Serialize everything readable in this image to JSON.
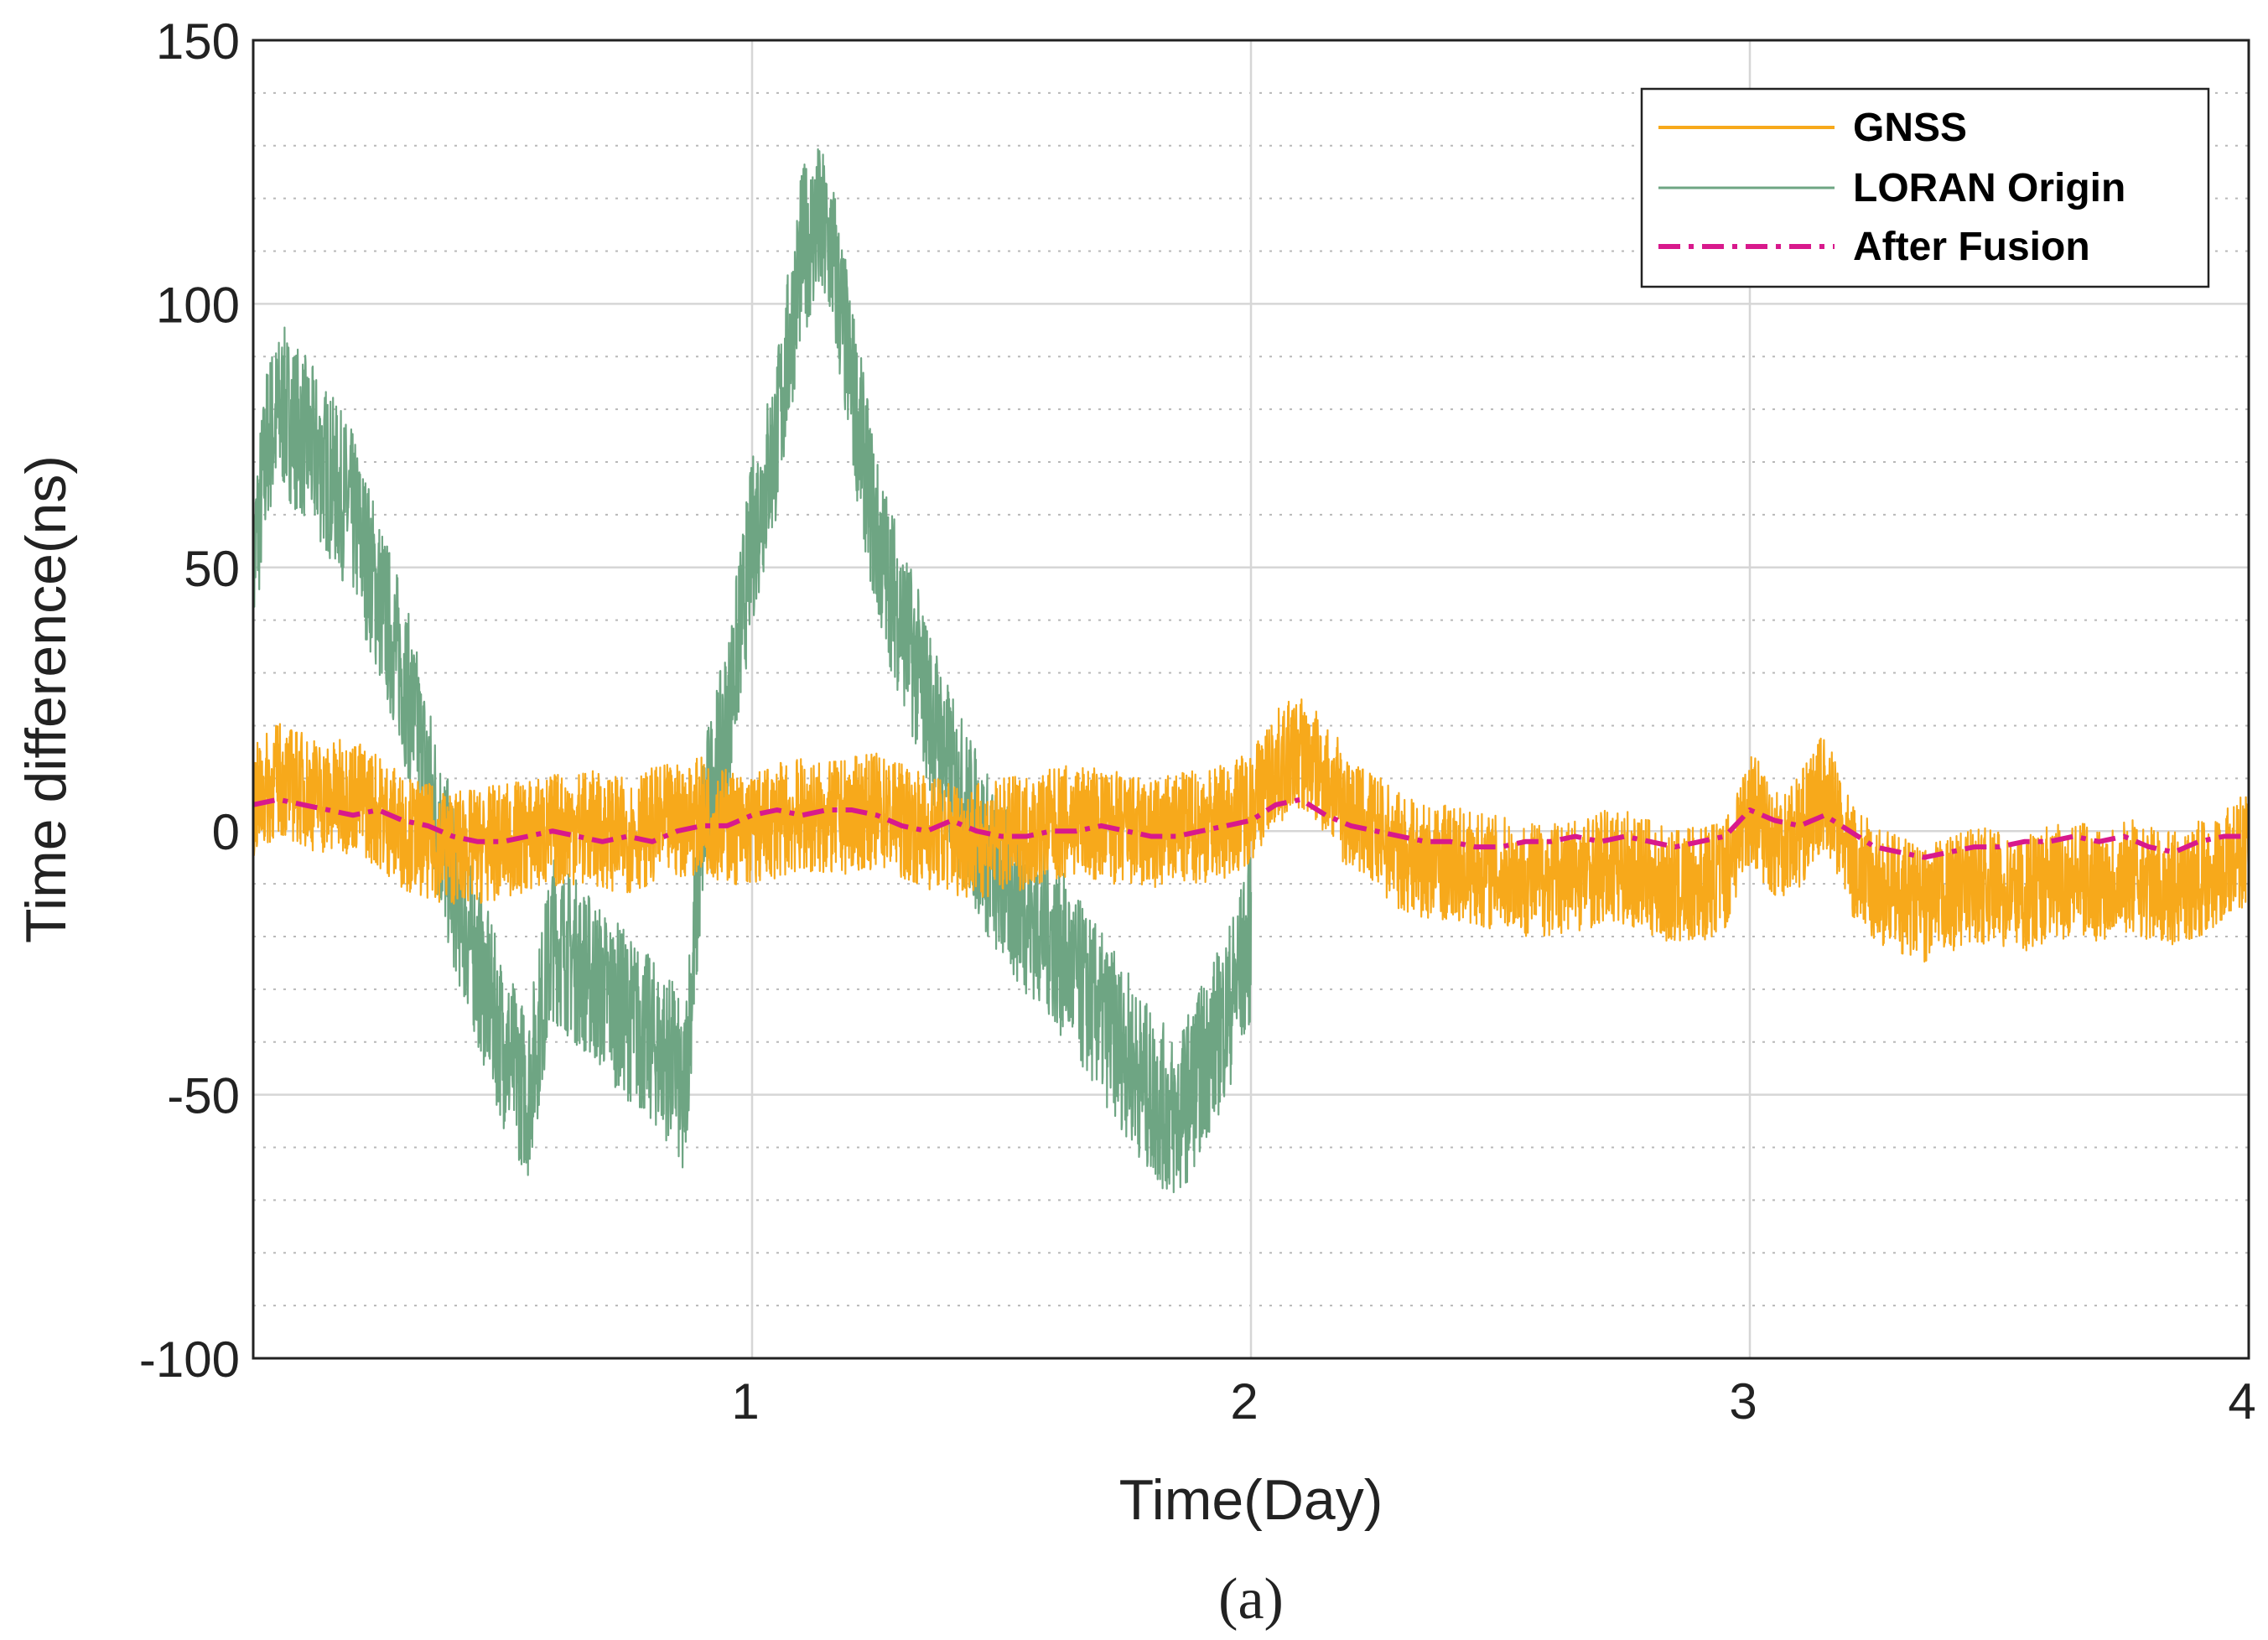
{
  "chart_data": {
    "type": "line",
    "title": "",
    "caption": "(a)",
    "xlabel": "Time(Day)",
    "ylabel": "Time difference(ns)",
    "xlim": [
      0,
      4
    ],
    "ylim": [
      -100,
      150
    ],
    "xticks": [
      1,
      2,
      3,
      4
    ],
    "xtick_labels": [
      "1",
      "2",
      "3",
      "4"
    ],
    "yticks": [
      -100,
      -50,
      0,
      50,
      100,
      150
    ],
    "ytick_labels": [
      "-100",
      "-50",
      "0",
      "50",
      "100",
      "150"
    ],
    "minor_yticks": [
      -90,
      -80,
      -70,
      -60,
      -40,
      -30,
      -20,
      -10,
      10,
      20,
      30,
      40,
      60,
      70,
      80,
      90,
      110,
      120,
      130,
      140
    ],
    "grid": true,
    "legend_position": "top-right",
    "series": [
      {
        "name": "GNSS",
        "color": "#f7a91b",
        "style": "solid",
        "x": [
          0,
          0.05,
          0.1,
          0.15,
          0.2,
          0.25,
          0.3,
          0.35,
          0.4,
          0.45,
          0.5,
          0.55,
          0.6,
          0.65,
          0.7,
          0.75,
          0.8,
          0.85,
          0.9,
          0.95,
          1.0,
          1.05,
          1.1,
          1.15,
          1.2,
          1.25,
          1.3,
          1.35,
          1.4,
          1.45,
          1.5,
          1.55,
          1.6,
          1.65,
          1.7,
          1.75,
          1.8,
          1.85,
          1.9,
          1.95,
          2.0,
          2.05,
          2.1,
          2.15,
          2.2,
          2.25,
          2.3,
          2.35,
          2.4,
          2.45,
          2.5,
          2.55,
          2.6,
          2.65,
          2.7,
          2.75,
          2.8,
          2.85,
          2.9,
          2.95,
          3.0,
          3.05,
          3.1,
          3.15,
          3.2,
          3.25,
          3.3,
          3.35,
          3.4,
          3.45,
          3.5,
          3.55,
          3.6,
          3.65,
          3.7,
          3.75,
          3.8,
          3.85,
          3.9,
          3.95,
          4.0
        ],
        "y": [
          5,
          10,
          8,
          6,
          7,
          4,
          0,
          -2,
          -3,
          -3,
          -2,
          -1,
          0,
          1,
          0,
          -1,
          1,
          2,
          3,
          1,
          0,
          2,
          3,
          2,
          3,
          4,
          2,
          0,
          -1,
          -2,
          -1,
          0,
          1,
          2,
          1,
          0,
          -1,
          0,
          1,
          2,
          5,
          12,
          15,
          10,
          3,
          0,
          -4,
          -6,
          -6,
          -7,
          -8,
          -9,
          -9,
          -8,
          -7,
          -7,
          -9,
          -11,
          -10,
          -8,
          5,
          -2,
          0,
          8,
          -5,
          -10,
          -12,
          -14,
          -12,
          -10,
          -11,
          -12,
          -10,
          -9,
          -10,
          -8,
          -10,
          -11,
          -9,
          -7,
          -3
        ]
      },
      {
        "name": "LORAN Origin",
        "color": "#6ea583",
        "style": "solid",
        "x": [
          0,
          0.03,
          0.06,
          0.1,
          0.15,
          0.2,
          0.25,
          0.3,
          0.35,
          0.4,
          0.45,
          0.5,
          0.55,
          0.56,
          0.6,
          0.65,
          0.7,
          0.75,
          0.8,
          0.85,
          0.86,
          0.9,
          0.95,
          1.0,
          1.05,
          1.1,
          1.13,
          1.16,
          1.2,
          1.25,
          1.3,
          1.35,
          1.4,
          1.45,
          1.5,
          1.55,
          1.6,
          1.65,
          1.7,
          1.75,
          1.8,
          1.85,
          1.9,
          1.95,
          2.0
        ],
        "y": [
          50,
          75,
          80,
          75,
          68,
          60,
          45,
          30,
          10,
          -10,
          -25,
          -40,
          -50,
          -45,
          -20,
          -25,
          -30,
          -35,
          -40,
          -45,
          -55,
          0,
          20,
          55,
          75,
          110,
          115,
          110,
          85,
          55,
          40,
          25,
          10,
          0,
          -10,
          -15,
          -20,
          -28,
          -35,
          -42,
          -50,
          -55,
          -45,
          -35,
          -20
        ]
      },
      {
        "name": "After Fusion",
        "color": "#d8198c",
        "style": "dash-dot",
        "x": [
          0,
          0.05,
          0.1,
          0.15,
          0.2,
          0.25,
          0.3,
          0.35,
          0.4,
          0.45,
          0.5,
          0.55,
          0.6,
          0.65,
          0.7,
          0.75,
          0.8,
          0.85,
          0.9,
          0.95,
          1.0,
          1.05,
          1.1,
          1.15,
          1.2,
          1.25,
          1.3,
          1.35,
          1.4,
          1.45,
          1.5,
          1.55,
          1.6,
          1.65,
          1.7,
          1.75,
          1.8,
          1.85,
          1.9,
          1.95,
          2.0,
          2.05,
          2.1,
          2.15,
          2.2,
          2.25,
          2.3,
          2.35,
          2.4,
          2.45,
          2.5,
          2.55,
          2.6,
          2.65,
          2.7,
          2.75,
          2.8,
          2.85,
          2.9,
          2.95,
          3.0,
          3.05,
          3.1,
          3.15,
          3.2,
          3.25,
          3.3,
          3.35,
          3.4,
          3.45,
          3.5,
          3.55,
          3.6,
          3.65,
          3.7,
          3.75,
          3.8,
          3.85,
          3.9,
          3.95,
          4.0
        ],
        "y": [
          5,
          6,
          5,
          4,
          3,
          4,
          2,
          1,
          -1,
          -2,
          -2,
          -1,
          0,
          -1,
          -2,
          -1,
          -2,
          0,
          1,
          1,
          3,
          4,
          3,
          4,
          4,
          3,
          1,
          0,
          2,
          0,
          -1,
          -1,
          0,
          0,
          1,
          0,
          -1,
          -1,
          0,
          1,
          2,
          5,
          6,
          3,
          1,
          0,
          -1,
          -2,
          -2,
          -3,
          -3,
          -2,
          -2,
          -1,
          -2,
          -1,
          -2,
          -3,
          -2,
          -1,
          4,
          2,
          1,
          3,
          0,
          -3,
          -4,
          -5,
          -4,
          -3,
          -3,
          -2,
          -2,
          -1,
          -2,
          -1,
          -3,
          -4,
          -2,
          -1,
          -1
        ]
      }
    ]
  }
}
